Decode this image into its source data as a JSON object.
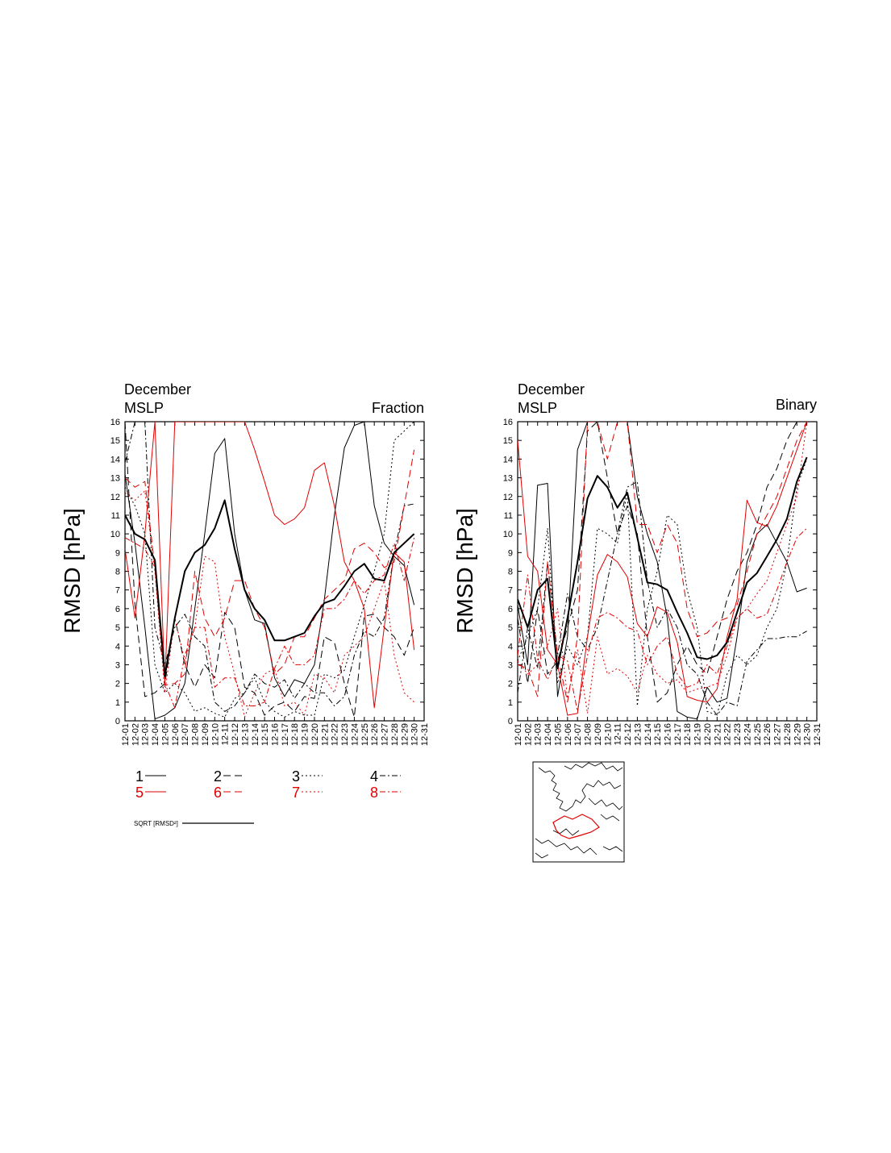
{
  "left_panel": {
    "line1": "December",
    "line2": "MSLP",
    "right_title": "Fraction"
  },
  "right_panel": {
    "line1": "December",
    "line2": "MSLP",
    "right_title": "Binary"
  },
  "ylabel": "RMSD [hPa]",
  "sqrt_label": "SQRT [RMSD²]",
  "legend": [
    {
      "id": "1",
      "color": "#000000",
      "dash": ""
    },
    {
      "id": "2",
      "color": "#000000",
      "dash": "9,5"
    },
    {
      "id": "3",
      "color": "#000000",
      "dash": "2,3"
    },
    {
      "id": "4",
      "color": "#000000",
      "dash": "7,3,2,3"
    },
    {
      "id": "5",
      "color": "#e00000",
      "dash": ""
    },
    {
      "id": "6",
      "color": "#e00000",
      "dash": "9,5"
    },
    {
      "id": "7",
      "color": "#e00000",
      "dash": "2,3"
    },
    {
      "id": "8",
      "color": "#e00000",
      "dash": "7,3,2,3"
    }
  ],
  "chart_data": [
    {
      "type": "line",
      "title": "December MSLP Fraction",
      "ylabel": "RMSD [hPa]",
      "ylim": [
        0,
        16
      ],
      "xlim": [
        1,
        31
      ],
      "x_tick_labels": [
        "12-01",
        "12-02",
        "12-03",
        "12-04",
        "12-05",
        "12-06",
        "12-07",
        "12-08",
        "12-09",
        "12-10",
        "12-11",
        "12-12",
        "12-13",
        "12-14",
        "12-15",
        "12-16",
        "12-17",
        "12-18",
        "12-19",
        "12-20",
        "12-21",
        "12-22",
        "12-23",
        "12-24",
        "12-25",
        "12-26",
        "12-27",
        "12-28",
        "12-29",
        "12-30",
        "12-31"
      ],
      "y_ticks": [
        0,
        1,
        2,
        3,
        4,
        5,
        6,
        7,
        8,
        9,
        10,
        11,
        12,
        13,
        14,
        15,
        16
      ],
      "series": [
        {
          "name": "1",
          "values": [
            13.2,
            9.5,
            5.0,
            0.1,
            0.3,
            0.7,
            2.0,
            6.0,
            10.0,
            14.3,
            15.1,
            10.0,
            7.0,
            5.4,
            5.2,
            2.3,
            1.3,
            2.2,
            2.0,
            3.0,
            6.5,
            11.0,
            14.6,
            15.8,
            16.0,
            11.5,
            9.5,
            8.8,
            8.3,
            6.2
          ]
        },
        {
          "name": "2",
          "values": [
            16.0,
            6.2,
            1.3,
            1.5,
            2.0,
            5.5,
            3.0,
            1.8,
            3.0,
            2.3,
            5.8,
            5.0,
            1.8,
            1.5,
            0.3,
            0.8,
            1.0,
            0.5,
            1.3,
            1.2,
            4.5,
            4.2,
            2.0,
            0.2,
            5.6,
            5.7,
            5.0,
            4.5,
            3.5,
            5.0
          ]
        },
        {
          "name": "3",
          "values": [
            12.5,
            11.5,
            10.0,
            3.0,
            1.5,
            2.0,
            1.5,
            0.5,
            0.7,
            0.4,
            0.2,
            1.2,
            1.5,
            2.3,
            1.0,
            0.5,
            0.2,
            0.5,
            0.3,
            0.3,
            2.5,
            2.3,
            2.7,
            4.5,
            6.2,
            8.0,
            10.0,
            15.0,
            15.5,
            16.0
          ]
        },
        {
          "name": "4",
          "values": [
            13.8,
            16.0,
            16.0,
            5.0,
            3.0,
            5.0,
            5.7,
            4.5,
            4.0,
            1.0,
            0.5,
            0.8,
            1.5,
            2.5,
            2.0,
            1.8,
            2.2,
            1.2,
            2.0,
            1.5,
            1.5,
            0.8,
            1.3,
            3.5,
            4.8,
            4.5,
            5.5,
            9.0,
            11.5,
            11.6
          ]
        },
        {
          "name": "5",
          "values": [
            9.2,
            5.5,
            10.0,
            16.0,
            2.0,
            16.0,
            16.0,
            16.0,
            16.0,
            16.0,
            16.0,
            16.0,
            16.0,
            14.5,
            12.8,
            11.0,
            10.5,
            10.8,
            11.4,
            13.4,
            13.8,
            11.5,
            8.5,
            7.5,
            6.0,
            0.7,
            5.0,
            9.0,
            8.5,
            3.8
          ]
        },
        {
          "name": "6",
          "values": [
            13.0,
            12.5,
            12.8,
            8.2,
            1.9,
            2.0,
            2.5,
            8.0,
            5.5,
            4.5,
            5.5,
            7.5,
            7.5,
            6.0,
            5.0,
            2.5,
            3.0,
            4.5,
            4.5,
            5.5,
            6.5,
            7.0,
            7.5,
            9.2,
            9.5,
            9.0,
            8.2,
            8.5,
            11.5,
            14.5
          ]
        },
        {
          "name": "7",
          "values": [
            12.2,
            11.8,
            12.3,
            8.0,
            1.5,
            5.5,
            3.2,
            5.0,
            8.8,
            8.5,
            4.5,
            2.5,
            0.2,
            1.5,
            2.5,
            2.8,
            0.8,
            1.0,
            0.3,
            2.5,
            2.3,
            1.5,
            3.5,
            4.0,
            4.5,
            6.0,
            7.5,
            3.5,
            1.5,
            1.0
          ]
        },
        {
          "name": "8",
          "values": [
            9.8,
            9.5,
            9.2,
            8.2,
            2.0,
            0.7,
            3.5,
            5.0,
            5.0,
            1.8,
            2.3,
            2.3,
            0.8,
            0.8,
            1.0,
            2.8,
            4.0,
            3.0,
            3.0,
            3.5,
            6.0,
            6.0,
            6.5,
            7.5,
            6.8,
            7.5,
            7.8,
            9.5,
            7.5,
            9.8
          ]
        },
        {
          "name": "SQRT [RMSD²]",
          "values": [
            11.0,
            10.0,
            9.7,
            8.6,
            2.4,
            5.5,
            8.0,
            9.0,
            9.4,
            10.3,
            11.8,
            9.2,
            7.0,
            6.0,
            5.4,
            4.3,
            4.3,
            4.5,
            4.7,
            5.6,
            6.3,
            6.5,
            7.2,
            8.0,
            8.4,
            7.6,
            7.5,
            9.0,
            9.5,
            10.0
          ],
          "emphasis": true
        }
      ]
    },
    {
      "type": "line",
      "title": "December MSLP Binary",
      "ylabel": "RMSD [hPa]",
      "ylim": [
        0,
        16
      ],
      "xlim": [
        1,
        31
      ],
      "x_tick_labels": [
        "12-01",
        "12-02",
        "12-03",
        "12-04",
        "12-05",
        "12-06",
        "12-07",
        "12-08",
        "12-09",
        "12-10",
        "12-11",
        "12-12",
        "12-13",
        "12-14",
        "12-15",
        "12-16",
        "12-17",
        "12-18",
        "12-19",
        "12-20",
        "12-21",
        "12-22",
        "12-23",
        "12-24",
        "12-25",
        "12-26",
        "12-27",
        "12-28",
        "12-29",
        "12-30",
        "12-31"
      ],
      "y_ticks": [
        0,
        1,
        2,
        3,
        4,
        5,
        6,
        7,
        8,
        9,
        10,
        11,
        12,
        13,
        14,
        15,
        16
      ],
      "series": [
        {
          "name": "1",
          "values": [
            6.2,
            3.0,
            12.6,
            12.7,
            1.3,
            4.5,
            14.5,
            16.0,
            16.0,
            16.0,
            16.0,
            16.0,
            12.0,
            10.0,
            8.5,
            5.5,
            0.5,
            0.2,
            0.1,
            1.8,
            1.0,
            1.2,
            4.5,
            8.5,
            10.0,
            10.5,
            9.5,
            8.5,
            6.9,
            7.1
          ]
        },
        {
          "name": "2",
          "values": [
            5.5,
            2.0,
            6.0,
            2.5,
            3.2,
            5.0,
            7.0,
            15.5,
            16.0,
            13.0,
            10.0,
            11.5,
            10.0,
            4.5,
            1.0,
            1.5,
            3.0,
            4.0,
            3.0,
            2.5,
            4.5,
            6.5,
            8.0,
            9.0,
            10.5,
            12.5,
            13.5,
            15.0,
            16.0,
            16.0
          ]
        },
        {
          "name": "3",
          "values": [
            3.2,
            4.5,
            6.0,
            10.3,
            2.0,
            4.0,
            3.0,
            4.5,
            10.3,
            10.0,
            9.5,
            12.2,
            0.8,
            6.0,
            8.0,
            11.0,
            10.5,
            7.0,
            5.0,
            0.5,
            0.3,
            2.5,
            3.5,
            3.0,
            3.5,
            5.0,
            6.0,
            8.5,
            12.5,
            14.0
          ]
        },
        {
          "name": "4",
          "values": [
            1.5,
            5.0,
            2.8,
            8.5,
            3.5,
            6.8,
            4.5,
            3.8,
            5.0,
            7.5,
            10.0,
            12.5,
            12.8,
            7.5,
            5.0,
            6.0,
            5.0,
            3.0,
            2.5,
            1.0,
            0.3,
            1.0,
            0.8,
            3.2,
            3.8,
            4.4,
            4.4,
            4.5,
            4.5,
            4.8
          ]
        },
        {
          "name": "5",
          "values": [
            15.0,
            8.8,
            8.0,
            3.8,
            3.0,
            0.3,
            0.4,
            4.5,
            7.8,
            8.9,
            8.5,
            7.7,
            5.2,
            4.5,
            6.1,
            5.8,
            4.2,
            1.3,
            1.1,
            1.0,
            1.7,
            4.5,
            6.5,
            11.8,
            10.6,
            10.4,
            11.5,
            13.0,
            14.5,
            16.0
          ]
        },
        {
          "name": "6",
          "values": [
            3.0,
            2.8,
            1.3,
            8.5,
            3.5,
            1.0,
            4.5,
            16.0,
            16.0,
            14.0,
            16.0,
            16.0,
            10.5,
            10.5,
            9.0,
            10.5,
            9.5,
            6.0,
            4.5,
            4.7,
            5.3,
            5.5,
            6.2,
            8.0,
            10.0,
            11.0,
            12.0,
            13.5,
            15.0,
            16.0
          ]
        },
        {
          "name": "7",
          "values": [
            3.2,
            2.5,
            3.0,
            4.0,
            6.0,
            1.2,
            3.8,
            0.4,
            4.5,
            2.5,
            2.8,
            2.4,
            1.5,
            3.5,
            2.5,
            2.0,
            2.2,
            1.5,
            1.7,
            1.8,
            2.0,
            3.5,
            5.5,
            6.0,
            6.8,
            7.5,
            9.0,
            10.5,
            12.0,
            16.0
          ]
        },
        {
          "name": "8",
          "values": [
            3.5,
            7.8,
            3.3,
            2.2,
            3.5,
            3.2,
            0.5,
            3.5,
            5.5,
            5.8,
            5.5,
            5.0,
            4.8,
            3.0,
            4.0,
            4.5,
            2.5,
            1.8,
            2.0,
            3.0,
            2.5,
            4.0,
            5.5,
            6.0,
            5.5,
            5.7,
            7.0,
            8.5,
            9.8,
            10.3
          ]
        },
        {
          "name": "SQRT [RMSD²]",
          "values": [
            6.5,
            5.0,
            7.0,
            7.6,
            2.8,
            5.5,
            8.5,
            11.9,
            13.1,
            12.5,
            11.4,
            12.2,
            9.8,
            7.4,
            7.3,
            7.0,
            5.8,
            4.7,
            3.4,
            3.3,
            3.5,
            4.2,
            5.8,
            7.4,
            7.9,
            8.8,
            9.7,
            10.8,
            12.8,
            14.1
          ],
          "emphasis": true
        }
      ]
    }
  ]
}
